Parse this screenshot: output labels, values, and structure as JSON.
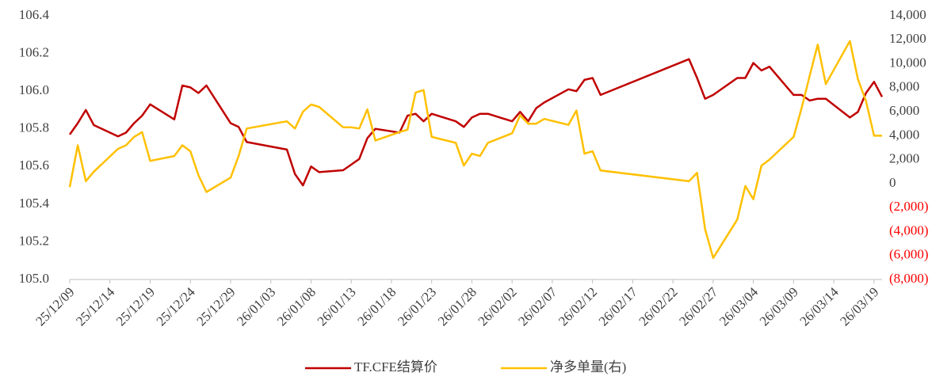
{
  "chart_data": {
    "type": "line",
    "x": [
      "25/12/09",
      "25/12/10",
      "25/12/11",
      "25/12/12",
      "25/12/15",
      "25/12/16",
      "25/12/17",
      "25/12/18",
      "25/12/19",
      "25/12/22",
      "25/12/23",
      "25/12/24",
      "25/12/25",
      "25/12/26",
      "25/12/29",
      "25/12/30",
      "25/12/31",
      "26/01/05",
      "26/01/06",
      "26/01/07",
      "26/01/08",
      "26/01/09",
      "26/01/12",
      "26/01/13",
      "26/01/14",
      "26/01/15",
      "26/01/16",
      "26/01/19",
      "26/01/20",
      "26/01/21",
      "26/01/22",
      "26/01/23",
      "26/01/26",
      "26/01/27",
      "26/01/28",
      "26/01/29",
      "26/01/30",
      "26/02/02",
      "26/02/03",
      "26/02/04",
      "26/02/05",
      "26/02/06",
      "26/02/09",
      "26/02/10",
      "26/02/11",
      "26/02/12",
      "26/02/13",
      "26/02/24",
      "26/02/25",
      "26/02/26",
      "26/02/27",
      "26/03/02",
      "26/03/03",
      "26/03/04",
      "26/03/05",
      "26/03/06",
      "26/03/09",
      "26/03/10",
      "26/03/11",
      "26/03/12",
      "26/03/13",
      "26/03/16",
      "26/03/17",
      "26/03/18",
      "26/03/19",
      "26/03/20"
    ],
    "series": [
      {
        "name": "TF.CFE结算价",
        "color": "#c00000",
        "values": [
          105.77,
          105.83,
          105.9,
          105.82,
          105.76,
          105.78,
          105.83,
          105.87,
          105.93,
          105.85,
          106.03,
          106.02,
          105.99,
          106.03,
          105.83,
          105.81,
          105.73,
          105.69,
          105.56,
          105.5,
          105.6,
          105.57,
          105.58,
          105.61,
          105.64,
          105.75,
          105.8,
          105.78,
          105.87,
          105.88,
          105.84,
          105.88,
          105.84,
          105.81,
          105.86,
          105.88,
          105.88,
          105.84,
          105.89,
          105.84,
          105.91,
          105.94,
          106.01,
          106.0,
          106.06,
          106.07,
          105.98,
          106.17,
          106.07,
          105.96,
          105.98,
          106.07,
          106.07,
          106.15,
          106.11,
          106.13,
          105.98,
          105.98,
          105.95,
          105.96,
          105.96,
          105.86,
          105.89,
          105.99,
          106.05,
          105.97
        ]
      },
      {
        "name": "净多单量(右)",
        "color": "#ffc000",
        "axis": "y2",
        "values": [
          -300,
          3200,
          200,
          1000,
          2900,
          3200,
          3900,
          4300,
          1900,
          2300,
          3200,
          2700,
          700,
          -700,
          500,
          2300,
          4600,
          5200,
          4600,
          6000,
          6600,
          6400,
          4700,
          4700,
          4600,
          6200,
          3600,
          4300,
          4500,
          7600,
          7800,
          3900,
          3400,
          1500,
          2500,
          2300,
          3400,
          4200,
          5700,
          5000,
          5000,
          5400,
          4900,
          6100,
          2500,
          2700,
          1100,
          200,
          900,
          -3800,
          -6200,
          -3000,
          -200,
          -1300,
          1500,
          2000,
          3900,
          6300,
          9000,
          11600,
          8300,
          11900,
          8700,
          6900,
          4000,
          4000
        ]
      }
    ],
    "xlim": [
      "25/12/09",
      "26/03/20"
    ],
    "xticks": [
      "25/12/09",
      "25/12/14",
      "25/12/19",
      "25/12/24",
      "25/12/29",
      "26/01/03",
      "26/01/08",
      "26/01/13",
      "26/01/18",
      "26/01/23",
      "26/01/28",
      "26/02/02",
      "26/02/07",
      "26/02/12",
      "26/02/17",
      "26/02/22",
      "26/02/27",
      "26/03/04",
      "26/03/09",
      "26/03/14",
      "26/03/19"
    ],
    "ylim": [
      105.0,
      106.4
    ],
    "yticks": [
      {
        "value": 105.0,
        "label": "105.0"
      },
      105.2,
      105.4,
      105.6,
      105.8,
      {
        "value": 106.0,
        "label": "106.0"
      },
      106.2,
      106.4
    ],
    "y2lim": [
      -8000,
      14000
    ],
    "y2ticks": [
      {
        "value": -8000,
        "label": "(8,000)"
      },
      {
        "value": -6000,
        "label": "(6,000)"
      },
      {
        "value": -4000,
        "label": "(4,000)"
      },
      {
        "value": -2000,
        "label": "(2,000)"
      },
      0,
      {
        "value": 2000,
        "label": "2,000"
      },
      {
        "value": 4000,
        "label": "4,000"
      },
      {
        "value": 6000,
        "label": "6,000"
      },
      {
        "value": 8000,
        "label": "8,000"
      },
      {
        "value": 10000,
        "label": "10,000"
      },
      {
        "value": 12000,
        "label": "12,000"
      },
      {
        "value": 14000,
        "label": "14,000"
      }
    ],
    "negative_tick_color": "#ff0000",
    "legend": "bottom"
  }
}
